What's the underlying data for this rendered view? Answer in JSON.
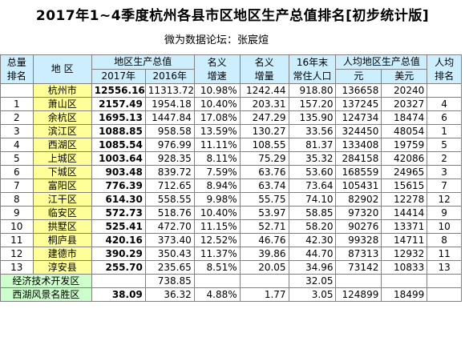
{
  "title": "2017年1~4季度杭州各县市区地区生产总值排名[初步统计版]",
  "subtitle": "微为数据论坛：张宸煊",
  "headers": {
    "total_rank_1": "总量",
    "total_rank_2": "排名",
    "region": "地 区",
    "gdp_group": "地区生产总值",
    "gdp_2017": "2017年",
    "gdp_2016": "2016年",
    "nominal_growth_1": "名义",
    "nominal_growth_2": "增速",
    "nominal_incr_1": "名义",
    "nominal_incr_2": "增量",
    "pop_1": "16年末",
    "pop_2": "常住人口",
    "per_capita_group": "人均地区生产总值",
    "per_capita_yuan": "元",
    "per_capita_usd": "美元",
    "pc_rank_1": "人均",
    "pc_rank_2": "排名"
  },
  "rows": [
    {
      "rank": "",
      "region": "杭州市",
      "gdp_2017": "12556.16",
      "gdp_2016": "11313.72",
      "growth": "10.98%",
      "incr": "1242.44",
      "pop": "918.80",
      "pc_yuan": "136658",
      "pc_usd": "20240",
      "pc_rank": ""
    },
    {
      "rank": "1",
      "region": "萧山区",
      "gdp_2017": "2157.49",
      "gdp_2016": "1954.18",
      "growth": "10.40%",
      "incr": "203.31",
      "pop": "157.20",
      "pc_yuan": "137245",
      "pc_usd": "20327",
      "pc_rank": "4"
    },
    {
      "rank": "2",
      "region": "余杭区",
      "gdp_2017": "1695.13",
      "gdp_2016": "1447.84",
      "growth": "17.08%",
      "incr": "247.29",
      "pop": "135.90",
      "pc_yuan": "124734",
      "pc_usd": "18474",
      "pc_rank": "6"
    },
    {
      "rank": "3",
      "region": "滨江区",
      "gdp_2017": "1088.85",
      "gdp_2016": "958.58",
      "growth": "13.59%",
      "incr": "130.27",
      "pop": "33.56",
      "pc_yuan": "324450",
      "pc_usd": "48054",
      "pc_rank": "1"
    },
    {
      "rank": "4",
      "region": "西湖区",
      "gdp_2017": "1085.54",
      "gdp_2016": "976.99",
      "growth": "11.11%",
      "incr": "108.55",
      "pop": "81.37",
      "pc_yuan": "133408",
      "pc_usd": "19759",
      "pc_rank": "5"
    },
    {
      "rank": "5",
      "region": "上城区",
      "gdp_2017": "1003.64",
      "gdp_2016": "928.35",
      "growth": "8.11%",
      "incr": "75.29",
      "pop": "35.32",
      "pc_yuan": "284158",
      "pc_usd": "42086",
      "pc_rank": "2"
    },
    {
      "rank": "6",
      "region": "下城区",
      "gdp_2017": "903.48",
      "gdp_2016": "839.72",
      "growth": "7.59%",
      "incr": "63.76",
      "pop": "53.60",
      "pc_yuan": "168559",
      "pc_usd": "24965",
      "pc_rank": "3"
    },
    {
      "rank": "7",
      "region": "富阳区",
      "gdp_2017": "776.39",
      "gdp_2016": "712.65",
      "growth": "8.94%",
      "incr": "63.74",
      "pop": "73.64",
      "pc_yuan": "105431",
      "pc_usd": "15615",
      "pc_rank": "7"
    },
    {
      "rank": "8",
      "region": "江干区",
      "gdp_2017": "614.30",
      "gdp_2016": "558.55",
      "growth": "9.98%",
      "incr": "55.75",
      "pop": "74.10",
      "pc_yuan": "82902",
      "pc_usd": "12278",
      "pc_rank": "12"
    },
    {
      "rank": "9",
      "region": "临安区",
      "gdp_2017": "572.73",
      "gdp_2016": "518.76",
      "growth": "10.40%",
      "incr": "53.97",
      "pop": "58.85",
      "pc_yuan": "97320",
      "pc_usd": "14414",
      "pc_rank": "9"
    },
    {
      "rank": "10",
      "region": "拱墅区",
      "gdp_2017": "525.41",
      "gdp_2016": "472.70",
      "growth": "11.15%",
      "incr": "52.71",
      "pop": "58.20",
      "pc_yuan": "90276",
      "pc_usd": "13371",
      "pc_rank": "10"
    },
    {
      "rank": "11",
      "region": "桐庐县",
      "gdp_2017": "420.16",
      "gdp_2016": "373.40",
      "growth": "12.52%",
      "incr": "46.76",
      "pop": "42.30",
      "pc_yuan": "99328",
      "pc_usd": "14711",
      "pc_rank": "8"
    },
    {
      "rank": "12",
      "region": "建德市",
      "gdp_2017": "390.29",
      "gdp_2016": "350.43",
      "growth": "11.37%",
      "incr": "39.86",
      "pop": "44.70",
      "pc_yuan": "87313",
      "pc_usd": "12932",
      "pc_rank": "11"
    },
    {
      "rank": "13",
      "region": "淳安县",
      "gdp_2017": "255.70",
      "gdp_2016": "235.65",
      "growth": "8.51%",
      "incr": "20.05",
      "pop": "34.96",
      "pc_yuan": "73142",
      "pc_usd": "10833",
      "pc_rank": "13"
    }
  ],
  "extra_rows": [
    {
      "region": "经济技术开发区",
      "gdp_2017": "",
      "gdp_2016": "738.85",
      "growth": "",
      "incr": "",
      "pop": "32.05",
      "pc_yuan": "",
      "pc_usd": "",
      "pc_rank": ""
    },
    {
      "region": "西湖风景名胜区",
      "gdp_2017": "38.09",
      "gdp_2016": "36.32",
      "growth": "4.88%",
      "incr": "1.77",
      "pop": "3.05",
      "pc_yuan": "124899",
      "pc_usd": "18499",
      "pc_rank": ""
    }
  ]
}
